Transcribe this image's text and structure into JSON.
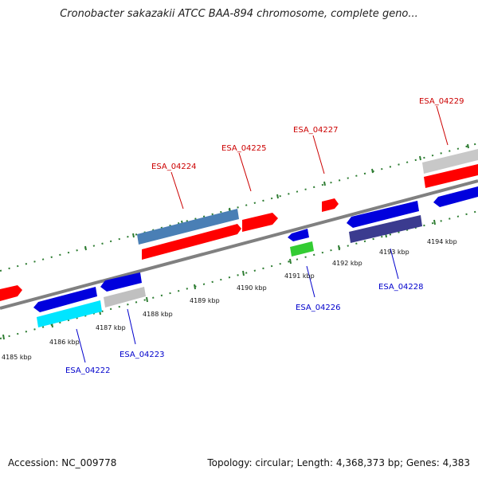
{
  "title": "Cronobacter sakazakii ATCC BAA-894 chromosome, complete geno...",
  "accession": "Accession: NC_009778",
  "summary": "Topology: circular; Length: 4,368,373 bp; Genes: 4,383",
  "colors": {
    "forward_label": "#cc0000",
    "reverse_label": "#0000cc",
    "tick": "#2e7d32",
    "backbone": "#888888"
  },
  "tick_labels": [
    {
      "id": "4185",
      "text": "4185 kbp"
    },
    {
      "id": "4186",
      "text": "4186 kbp"
    },
    {
      "id": "4187",
      "text": "4187 kbp"
    },
    {
      "id": "4188",
      "text": "4188 kbp"
    },
    {
      "id": "4189",
      "text": "4189 kbp"
    },
    {
      "id": "4190",
      "text": "4190 kbp"
    },
    {
      "id": "4191",
      "text": "4191 kbp"
    },
    {
      "id": "4192",
      "text": "4192 kbp"
    },
    {
      "id": "4193",
      "text": "4193 kbp"
    },
    {
      "id": "4194",
      "text": "4194 kbp"
    }
  ],
  "genes": [
    {
      "label": "ESA_04224",
      "strand": "forward",
      "color": "#ff0000"
    },
    {
      "label": "ESA_04225",
      "strand": "forward",
      "color": "#ff0000"
    },
    {
      "label": "ESA_04227",
      "strand": "forward",
      "color": "#ff0000"
    },
    {
      "label": "ESA_04229",
      "strand": "forward",
      "color": "#ff0000"
    },
    {
      "label": "ESA_04222",
      "strand": "reverse",
      "color": "#00e5ff"
    },
    {
      "label": "ESA_04223",
      "strand": "reverse",
      "color": "#c0c0c0"
    },
    {
      "label": "ESA_04226",
      "strand": "reverse",
      "color": "#33cc33"
    },
    {
      "label": "ESA_04228",
      "strand": "reverse",
      "color": "#3b3b8f"
    }
  ]
}
